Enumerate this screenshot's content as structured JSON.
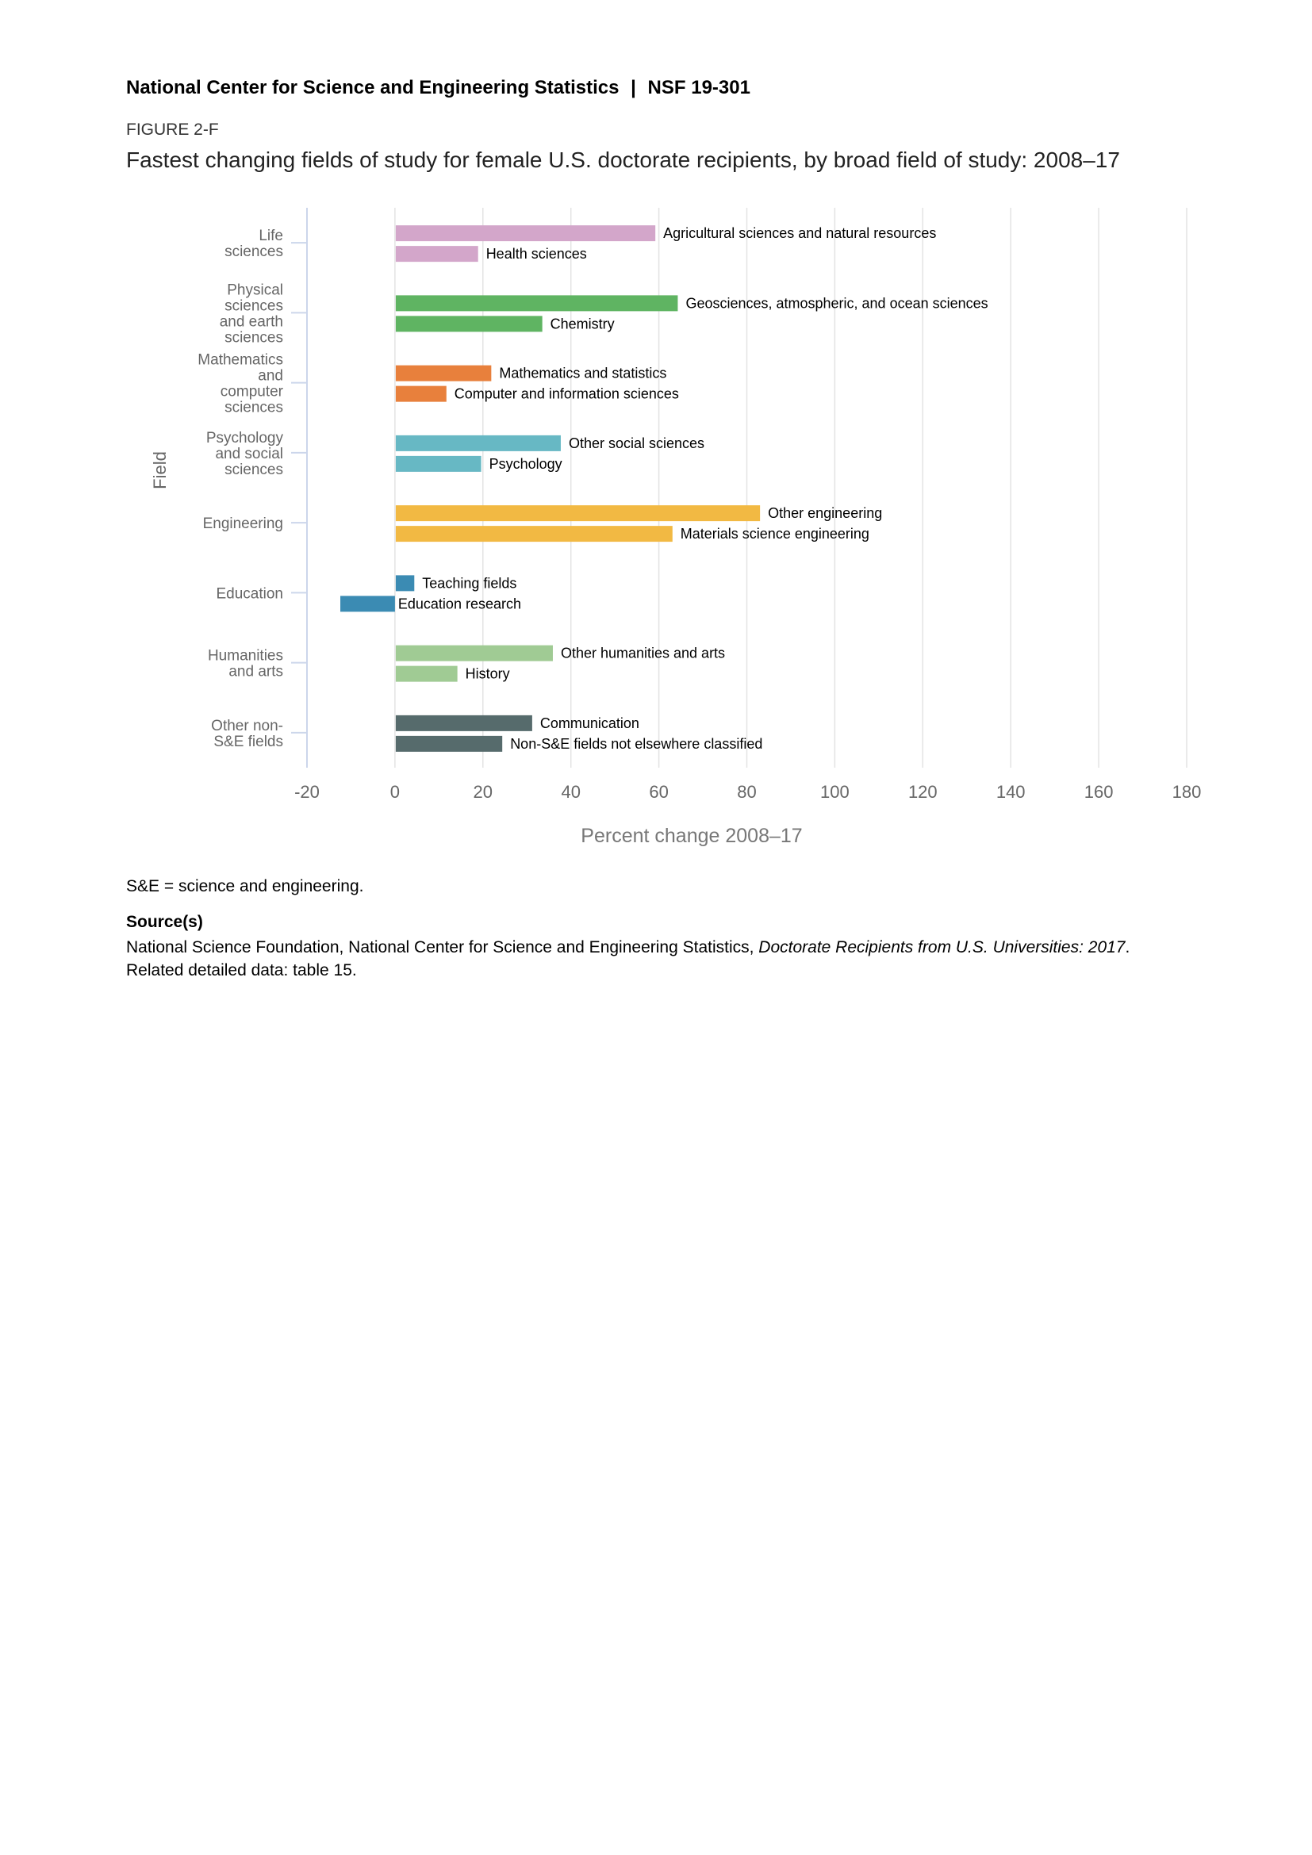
{
  "header": {
    "org": "National Center for Science and Engineering Statistics",
    "sep": "|",
    "report": "NSF 19-301"
  },
  "figure_label": "FIGURE 2-F",
  "colors": {
    "grid": "#e3e3e3",
    "axis": "#ccd6eb",
    "label": "#666666"
  },
  "chart_data": {
    "type": "bar",
    "orientation": "horizontal",
    "title": "Fastest changing fields of study for female U.S. doctorate recipients, by broad field of study: 2008–17",
    "xlabel": "Percent change 2008–17",
    "ylabel": "Field",
    "xlim": [
      -20,
      180
    ],
    "xticks": [
      "-20",
      "0",
      "20",
      "40",
      "60",
      "80",
      "100",
      "120",
      "140",
      "160",
      "180"
    ],
    "grid": true,
    "groups": [
      {
        "label": [
          "Life",
          "sciences"
        ],
        "color": "#d3a6ca",
        "bars": [
          {
            "name": "Agricultural sciences and natural resources",
            "value": 59.2
          },
          {
            "name": "Health sciences",
            "value": 18.9
          }
        ]
      },
      {
        "label": [
          "Physical",
          "sciences",
          "and earth",
          "sciences"
        ],
        "color": "#5fb462",
        "bars": [
          {
            "name": "Geosciences, atmospheric, and ocean sciences",
            "value": 64.3
          },
          {
            "name": "Chemistry",
            "value": 33.5
          }
        ]
      },
      {
        "label": [
          "Mathematics",
          "and",
          "computer",
          "sciences"
        ],
        "color": "#e8803c",
        "bars": [
          {
            "name": "Mathematics and statistics",
            "value": 21.9
          },
          {
            "name": "Computer and information sciences",
            "value": 11.7
          }
        ]
      },
      {
        "label": [
          "Psychology",
          "and social",
          "sciences"
        ],
        "color": "#67b8c4",
        "bars": [
          {
            "name": "Other social sciences",
            "value": 37.7
          },
          {
            "name": "Psychology",
            "value": 19.6
          }
        ]
      },
      {
        "label": [
          "Engineering"
        ],
        "color": "#f2b943",
        "bars": [
          {
            "name": "Other engineering",
            "value": 83.0
          },
          {
            "name": "Materials science engineering",
            "value": 63.1
          }
        ]
      },
      {
        "label": [
          "Education"
        ],
        "color": "#3b8bb3",
        "bars": [
          {
            "name": "Teaching fields",
            "value": 4.4
          },
          {
            "name": "Education research",
            "value": -12.6
          }
        ]
      },
      {
        "label": [
          "Humanities",
          "and arts"
        ],
        "color": "#a0cb94",
        "bars": [
          {
            "name": "Other humanities and arts",
            "value": 35.9
          },
          {
            "name": "History",
            "value": 14.2
          }
        ]
      },
      {
        "label": [
          "Other non-",
          "S&E fields"
        ],
        "color": "#566b6c",
        "bars": [
          {
            "name": "Communication",
            "value": 31.2
          },
          {
            "name": "Non-S&E fields not elsewhere classified",
            "value": 24.4
          }
        ]
      }
    ]
  },
  "notes": {
    "abbrev": "S&E = science and engineering.",
    "source_heading": "Source(s)",
    "source_text": "National Science Foundation, National Center for Science and Engineering Statistics, ",
    "source_title": "Doctorate Recipients from U.S. Universities: 2017",
    "source_end": ".",
    "related": "Related detailed data: table 15."
  }
}
